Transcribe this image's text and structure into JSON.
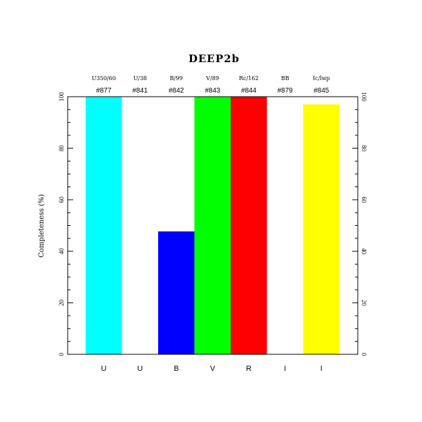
{
  "chart_data": {
    "type": "bar",
    "title": "DEEP2b",
    "ylabel": "Completeness (%)",
    "xlabel": "",
    "ylim": [
      0,
      100
    ],
    "yticks": [
      0,
      20,
      40,
      60,
      80,
      100
    ],
    "categories": [
      "U",
      "U",
      "B",
      "V",
      "R",
      "I",
      "I"
    ],
    "filters": [
      "U350/60",
      "U/38",
      "B/99",
      "V/89",
      "Rc/162",
      "BB",
      "Ic/lwp"
    ],
    "detectors": [
      "#877",
      "#841",
      "#842",
      "#843",
      "#844",
      "#879",
      "#845"
    ],
    "values": [
      100,
      0,
      47.7,
      100,
      100,
      0,
      97
    ],
    "colors": [
      "#00ffff",
      "#ffffff",
      "#0000ff",
      "#00ff00",
      "#ff0000",
      "#ffffff",
      "#ffff00"
    ]
  }
}
